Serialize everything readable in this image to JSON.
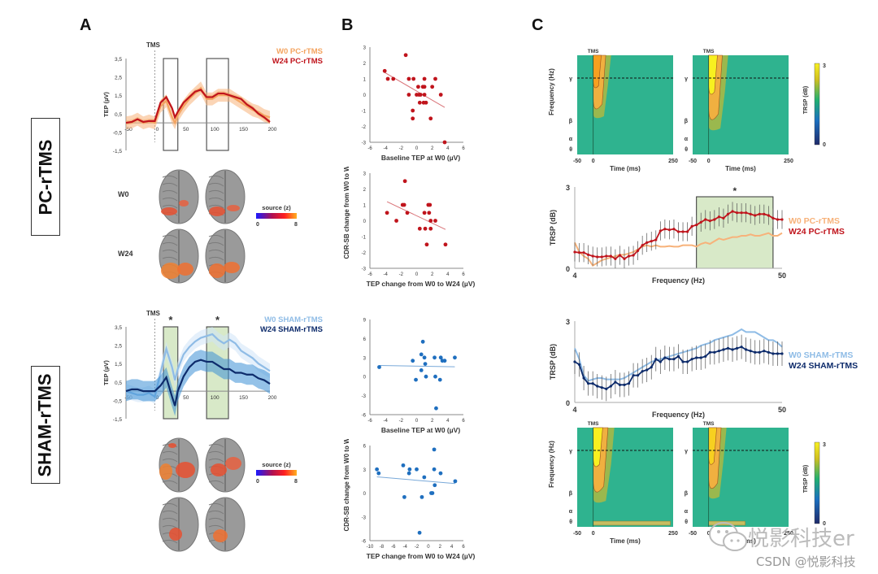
{
  "panels": {
    "A": "A",
    "B": "B",
    "C": "C"
  },
  "conditions": {
    "pc": "PC-rTMS",
    "sham": "SHAM-rTMS"
  },
  "watermark": {
    "main": "悦影科技er",
    "sub": "CSDN @悦影科技"
  },
  "colors": {
    "pc_w0": "#f4a460",
    "pc_w24": "#c0141c",
    "sham_w0": "#8fbce6",
    "sham_w24": "#0d2b6b",
    "sig_fill": "#d8e9c8",
    "tf_bg": "#2fb38f"
  },
  "chart_data": [
    {
      "id": "A-pc-tep",
      "type": "line",
      "title": "",
      "annotation": "TMS",
      "xlabel": "",
      "ylabel": "TEP (µV)",
      "xlim": [
        -50,
        200
      ],
      "ylim": [
        -1.5,
        3.5
      ],
      "xticks": [
        "-50",
        "0",
        "50",
        "100",
        "150",
        "200"
      ],
      "yticks": [
        "3,5",
        "2,5",
        "1,5",
        "0,5",
        "-0,5",
        "-1,5"
      ],
      "windows": [
        [
          15,
          40
        ],
        [
          90,
          128
        ]
      ],
      "window_stars": [],
      "x": [
        -50,
        -40,
        -30,
        -20,
        -10,
        0,
        10,
        20,
        30,
        35,
        40,
        50,
        60,
        70,
        80,
        90,
        100,
        110,
        120,
        130,
        140,
        150,
        160,
        170,
        180,
        190,
        200
      ],
      "series": [
        {
          "name": "W0 PC-rTMS",
          "values": [
            0.0,
            0.05,
            0.2,
            0.0,
            0.1,
            0.0,
            0.9,
            1.2,
            0.3,
            0.0,
            0.4,
            0.9,
            1.3,
            1.6,
            1.9,
            1.3,
            1.3,
            1.5,
            1.5,
            1.5,
            1.3,
            1.1,
            0.9,
            0.7,
            0.6,
            0.4,
            0.3
          ],
          "err": 0.35
        },
        {
          "name": "W24 PC-rTMS",
          "values": [
            0.0,
            0.05,
            0.2,
            0.05,
            0.1,
            0.1,
            1.1,
            1.4,
            0.8,
            0.3,
            0.6,
            1.1,
            1.4,
            1.7,
            1.8,
            1.4,
            1.4,
            1.6,
            1.6,
            1.5,
            1.4,
            1.3,
            1.0,
            0.8,
            0.5,
            0.3,
            0.05
          ],
          "err": 0.12
        }
      ]
    },
    {
      "id": "A-sham-tep",
      "type": "line",
      "title": "",
      "annotation": "TMS",
      "xlabel": "",
      "ylabel": "TEP (µV)",
      "xlim": [
        -50,
        200
      ],
      "ylim": [
        -1.5,
        3.5
      ],
      "xticks": [
        "-50",
        "0",
        "50",
        "100",
        "150",
        "200"
      ],
      "yticks": [
        "3,5",
        "2,5",
        "1,5",
        "0,5",
        "-0,5",
        "-1,5"
      ],
      "windows": [
        [
          15,
          40
        ],
        [
          90,
          128
        ]
      ],
      "window_stars": [
        "*",
        "*"
      ],
      "x": [
        -50,
        -40,
        -30,
        -20,
        -10,
        0,
        10,
        20,
        30,
        35,
        40,
        50,
        60,
        70,
        80,
        90,
        100,
        110,
        120,
        130,
        140,
        150,
        160,
        170,
        180,
        190,
        200
      ],
      "series": [
        {
          "name": "W0 SHAM-rTMS",
          "values": [
            0.0,
            -0.1,
            -0.2,
            -0.2,
            -0.1,
            -0.3,
            1.0,
            2.3,
            1.3,
            0.6,
            1.2,
            2.0,
            2.4,
            2.7,
            2.9,
            3.0,
            3.1,
            2.8,
            2.6,
            2.8,
            2.6,
            2.2,
            2.0,
            1.8,
            1.5,
            1.3,
            1.1
          ],
          "err": 0.4
        },
        {
          "name": "W24 SHAM-rTMS",
          "values": [
            0.0,
            0.1,
            0.1,
            0.0,
            0.0,
            0.0,
            0.3,
            0.75,
            -0.3,
            -0.8,
            0.0,
            0.8,
            1.3,
            1.6,
            1.7,
            1.6,
            1.6,
            1.4,
            1.2,
            1.2,
            1.0,
            1.0,
            0.9,
            0.9,
            0.7,
            0.6,
            0.4
          ],
          "err": 0.55
        }
      ]
    },
    {
      "id": "B-pc-baseline",
      "type": "scatter",
      "xlabel": "Baseline TEP at W0 (µV)",
      "ylabel": "",
      "xlim": [
        -6,
        6
      ],
      "ylim": [
        -3,
        3
      ],
      "xticks": [
        "-6",
        "-4",
        "-2",
        "0",
        "2",
        "4",
        "6"
      ],
      "yticks": [
        "3",
        "2",
        "1",
        "0",
        "-1",
        "-2",
        "-3"
      ],
      "points": [
        [
          -4.1,
          1.5
        ],
        [
          -3.7,
          1.0
        ],
        [
          -3.0,
          1.0
        ],
        [
          -1.4,
          2.5
        ],
        [
          -1.0,
          1.0
        ],
        [
          -1.0,
          0.0
        ],
        [
          -0.4,
          1.0
        ],
        [
          0.0,
          0.0
        ],
        [
          0.2,
          0.5
        ],
        [
          0.3,
          0.0
        ],
        [
          0.4,
          -0.5
        ],
        [
          0.5,
          0.0
        ],
        [
          0.8,
          0.5
        ],
        [
          0.9,
          -0.5
        ],
        [
          1.0,
          0.5
        ],
        [
          1.0,
          1.0
        ],
        [
          1.0,
          0.0
        ],
        [
          1.2,
          -0.5
        ],
        [
          -0.5,
          -1.0
        ],
        [
          -0.5,
          -1.5
        ],
        [
          1.8,
          -1.5
        ],
        [
          2.0,
          0.5
        ],
        [
          2.4,
          1.0
        ],
        [
          3.1,
          0.0
        ],
        [
          3.6,
          -3.0
        ]
      ],
      "fit": [
        [
          -4.1,
          1.4
        ],
        [
          3.6,
          -0.8
        ]
      ],
      "color": "#c0141c"
    },
    {
      "id": "B-pc-change",
      "type": "scatter",
      "xlabel": "TEP change from W0 to W24 (µV)",
      "ylabel": "CDR-SB change from W0 to W24",
      "xlim": [
        -6,
        6
      ],
      "ylim": [
        -3,
        3
      ],
      "xticks": [
        "-6",
        "-4",
        "-2",
        "0",
        "2",
        "4",
        "6"
      ],
      "yticks": [
        "3",
        "2",
        "1",
        "0",
        "-1",
        "-2",
        "-3"
      ],
      "points": [
        [
          -3.8,
          0.5
        ],
        [
          -2.6,
          0.0
        ],
        [
          -1.8,
          1.0
        ],
        [
          -1.6,
          1.0
        ],
        [
          -1.5,
          2.5
        ],
        [
          -1.2,
          0.5
        ],
        [
          0.4,
          -0.5
        ],
        [
          1.0,
          0.5
        ],
        [
          1.1,
          -0.5
        ],
        [
          1.3,
          -1.5
        ],
        [
          1.5,
          1.0
        ],
        [
          1.6,
          0.5
        ],
        [
          1.7,
          1.0
        ],
        [
          1.8,
          0.0
        ],
        [
          1.8,
          -0.5
        ],
        [
          2.4,
          0.0
        ],
        [
          3.7,
          -1.5
        ]
      ],
      "fit": [
        [
          -3.8,
          1.2
        ],
        [
          3.7,
          -0.55
        ]
      ],
      "color": "#c0141c"
    },
    {
      "id": "B-sham-baseline",
      "type": "scatter",
      "xlabel": "Baseline TEP at W0 (µV)",
      "ylabel": "",
      "xlim": [
        -6,
        6
      ],
      "ylim": [
        -6,
        9
      ],
      "xticks": [
        "-6",
        "-4",
        "-2",
        "0",
        "2",
        "4",
        "6"
      ],
      "yticks": [
        "9",
        "6",
        "3",
        "0",
        "-3",
        "-6"
      ],
      "points": [
        [
          -4.8,
          1.5
        ],
        [
          -0.5,
          2.5
        ],
        [
          -0.1,
          -0.5
        ],
        [
          0.6,
          3.5
        ],
        [
          0.6,
          1.0
        ],
        [
          0.8,
          5.5
        ],
        [
          1.0,
          3.0
        ],
        [
          1.1,
          2.0
        ],
        [
          1.2,
          0.0
        ],
        [
          2.3,
          3.0
        ],
        [
          2.4,
          0.0
        ],
        [
          2.5,
          -5.0
        ],
        [
          3.0,
          -0.5
        ],
        [
          3.1,
          3.0
        ],
        [
          3.3,
          2.5
        ],
        [
          3.6,
          2.5
        ],
        [
          4.9,
          3.0
        ]
      ],
      "fit": [
        [
          -4.8,
          1.75
        ],
        [
          4.9,
          1.55
        ]
      ],
      "color": "#1f6fbf"
    },
    {
      "id": "B-sham-change",
      "type": "scatter",
      "xlabel": "TEP change from W0 to W24 (µV)",
      "ylabel": "CDR-SB change from W0 to W24",
      "xlim": [
        -10,
        6
      ],
      "ylim": [
        -6,
        6
      ],
      "xticks": [
        "-10",
        "-8",
        "-6",
        "-4",
        "-2",
        "0",
        "2",
        "4",
        "6"
      ],
      "yticks": [
        "6",
        "3",
        "0",
        "-3",
        "-6"
      ],
      "points": [
        [
          -8.8,
          3.0
        ],
        [
          -8.5,
          2.5
        ],
        [
          -4.3,
          3.5
        ],
        [
          -4.1,
          -0.5
        ],
        [
          -3.3,
          2.5
        ],
        [
          -3.2,
          3.0
        ],
        [
          -2.0,
          3.0
        ],
        [
          -1.5,
          -5.0
        ],
        [
          -1.1,
          -0.5
        ],
        [
          -0.7,
          2.0
        ],
        [
          0.5,
          0.0
        ],
        [
          0.7,
          0.0
        ],
        [
          1.0,
          5.5
        ],
        [
          1.0,
          3.0
        ],
        [
          1.1,
          1.0
        ],
        [
          2.1,
          2.5
        ],
        [
          4.6,
          1.5
        ]
      ],
      "fit": [
        [
          -8.8,
          2.05
        ],
        [
          4.6,
          1.2
        ]
      ],
      "color": "#1f6fbf"
    },
    {
      "id": "C-pc-trsp",
      "type": "line",
      "xlabel": "Frequency (Hz)",
      "ylabel": "TRSP (dB)",
      "xlim": [
        4,
        50
      ],
      "ylim": [
        0,
        3
      ],
      "xticks": [
        "4",
        "50"
      ],
      "yticks": [
        "3",
        "0"
      ],
      "sig_band": [
        31,
        48
      ],
      "sig_star": "*",
      "x": [
        4,
        5,
        6,
        7,
        8,
        9,
        10,
        11,
        12,
        13,
        14,
        15,
        16,
        17,
        18,
        19,
        20,
        21,
        22,
        23,
        24,
        25,
        26,
        27,
        28,
        29,
        30,
        31,
        32,
        33,
        34,
        35,
        36,
        37,
        38,
        39,
        40,
        41,
        42,
        43,
        44,
        45,
        46,
        47,
        48,
        49,
        50
      ],
      "series": [
        {
          "name": "W0 PC-rTMS",
          "values": [
            0.95,
            0.6,
            0.45,
            0.35,
            0.1,
            0.2,
            0.3,
            0.35,
            0.4,
            0.45,
            0.5,
            0.5,
            0.55,
            0.6,
            0.7,
            0.8,
            0.85,
            0.8,
            0.85,
            0.8,
            0.8,
            0.82,
            0.8,
            0.8,
            0.85,
            0.85,
            0.85,
            0.8,
            0.9,
            0.95,
            0.9,
            1.0,
            1.1,
            1.05,
            1.1,
            1.15,
            1.15,
            1.2,
            1.2,
            1.25,
            1.2,
            1.2,
            1.25,
            1.3,
            1.2,
            1.2,
            1.3
          ],
          "err": 0
        },
        {
          "name": "W24 PC-rTMS",
          "values": [
            0.6,
            0.58,
            0.58,
            0.5,
            0.45,
            0.42,
            0.42,
            0.45,
            0.45,
            0.35,
            0.48,
            0.35,
            0.45,
            0.48,
            0.65,
            0.85,
            0.95,
            1.0,
            1.05,
            1.38,
            1.45,
            1.42,
            1.45,
            1.35,
            1.35,
            1.35,
            1.55,
            1.6,
            1.7,
            1.8,
            1.75,
            1.8,
            1.9,
            1.85,
            2.0,
            2.1,
            2.05,
            2.05,
            2.05,
            2.0,
            1.95,
            2.0,
            2.0,
            1.95,
            1.85,
            1.8,
            1.8
          ],
          "err": 0.35
        }
      ],
      "legend_position": "right"
    },
    {
      "id": "C-sham-trsp",
      "type": "line",
      "xlabel": "Frequency (Hz)",
      "ylabel": "TRSP (dB)",
      "xlim": [
        4,
        50
      ],
      "ylim": [
        0,
        3
      ],
      "xticks": [
        "4",
        "50"
      ],
      "yticks": [
        "3",
        "0"
      ],
      "x": [
        4,
        5,
        6,
        7,
        8,
        9,
        10,
        11,
        12,
        13,
        14,
        15,
        16,
        17,
        18,
        19,
        20,
        21,
        22,
        23,
        24,
        25,
        26,
        27,
        28,
        29,
        30,
        31,
        32,
        33,
        34,
        35,
        36,
        37,
        38,
        39,
        40,
        41,
        42,
        43,
        44,
        45,
        46,
        47,
        48,
        49,
        50
      ],
      "series": [
        {
          "name": "W0 SHAM-rTMS",
          "values": [
            2.0,
            1.6,
            1.0,
            0.8,
            0.85,
            0.9,
            0.9,
            0.85,
            0.85,
            0.85,
            0.85,
            0.9,
            1.0,
            1.1,
            1.2,
            1.3,
            1.4,
            1.5,
            1.55,
            1.6,
            1.65,
            1.7,
            1.75,
            1.8,
            1.85,
            1.9,
            1.95,
            2.0,
            2.1,
            2.15,
            2.2,
            2.3,
            2.35,
            2.4,
            2.45,
            2.5,
            2.6,
            2.7,
            2.6,
            2.6,
            2.6,
            2.5,
            2.4,
            2.3,
            2.3,
            2.2,
            2.05
          ],
          "err": 0
        },
        {
          "name": "W24 SHAM-rTMS",
          "values": [
            1.5,
            1.4,
            0.9,
            0.7,
            0.7,
            0.6,
            0.55,
            0.5,
            0.6,
            0.75,
            0.65,
            0.65,
            0.7,
            1.0,
            1.0,
            1.15,
            1.2,
            1.3,
            1.6,
            1.5,
            1.65,
            1.6,
            1.6,
            1.7,
            1.5,
            1.5,
            1.6,
            1.65,
            1.65,
            1.7,
            1.85,
            1.85,
            1.9,
            1.95,
            2.0,
            1.95,
            2.0,
            2.05,
            1.95,
            1.9,
            1.85,
            1.85,
            1.9,
            1.85,
            1.8,
            1.8,
            1.8
          ],
          "err": 0.45
        }
      ],
      "legend_position": "right"
    },
    {
      "id": "C-tf-maps",
      "type": "heatmap",
      "annotation": "TMS",
      "xlabel": "Time (ms)",
      "ylabel": "Frequency (Hz)",
      "xticks": [
        "-50",
        "0",
        "250"
      ],
      "yticks": [
        "γ",
        "β",
        "α",
        "θ"
      ],
      "colorbar": {
        "label": "TRSP (dB)",
        "min": "0",
        "max": "3"
      }
    },
    {
      "id": "A-source-colorbar",
      "type": "heatmap",
      "colorbar": {
        "label": "source (z)",
        "min": "0",
        "max": "8"
      },
      "row_labels": [
        "W0",
        "W24"
      ]
    }
  ]
}
